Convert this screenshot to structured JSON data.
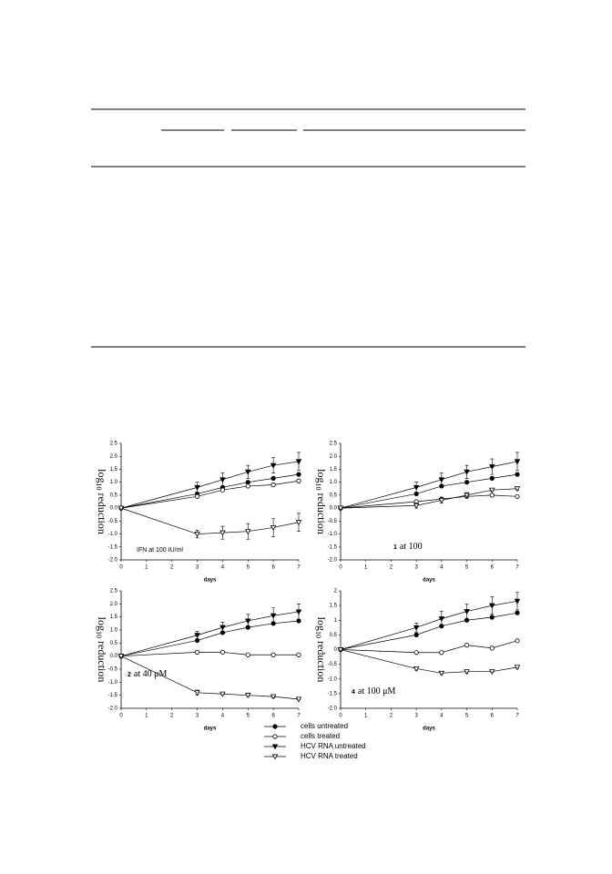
{
  "chart_data": [
    {
      "type": "line",
      "x_label": "days",
      "y_label": {
        "main": "log",
        "sub": "10",
        "rest": "reduction"
      },
      "annotation": "IFN at 100 IU/ml",
      "x": [
        0,
        3,
        4,
        5,
        6,
        7
      ],
      "xlim": [
        0,
        7
      ],
      "xticks": [
        0,
        1,
        2,
        3,
        4,
        5,
        6,
        7
      ],
      "ylim": [
        -2,
        2.5
      ],
      "yticks": [
        {
          "value": -2,
          "label": "-2.0"
        },
        -1.5,
        {
          "value": -1,
          "label": "-1.0"
        },
        -0.5,
        {
          "value": 0,
          "label": "0.0"
        },
        0.5,
        {
          "value": 1,
          "label": "1.0"
        },
        1.5,
        {
          "value": 2,
          "label": "2.0"
        },
        2.5
      ],
      "series": [
        {
          "name": "cells untreated",
          "marker": "circle-filled",
          "color": "#000000",
          "values": [
            0,
            0.55,
            0.8,
            1.0,
            1.15,
            1.3
          ]
        },
        {
          "name": "cells treated",
          "marker": "circle-open",
          "color": "#000000",
          "values": [
            0,
            0.45,
            0.7,
            0.85,
            0.9,
            1.05
          ]
        },
        {
          "name": "HCV RNA untreated",
          "marker": "triangle-filled",
          "color": "#000000",
          "values": [
            0,
            0.8,
            1.1,
            1.4,
            1.65,
            1.8
          ],
          "errors": [
            null,
            0.2,
            0.25,
            0.25,
            0.3,
            0.35
          ]
        },
        {
          "name": "HCV RNA treated",
          "marker": "triangle-open",
          "color": "#000000",
          "values": [
            0,
            -1.0,
            -0.95,
            -0.9,
            -0.75,
            -0.55
          ],
          "errors": [
            null,
            0.15,
            0.25,
            0.3,
            0.35,
            0.35
          ]
        }
      ]
    },
    {
      "type": "line",
      "x_label": "days",
      "y_label": {
        "main": "log",
        "sub": "10",
        "rest": "reduction"
      },
      "annotation_number": "1",
      "annotation": "at 100",
      "x": [
        0,
        3,
        4,
        5,
        6,
        7
      ],
      "xlim": [
        0,
        7
      ],
      "xticks": [
        0,
        1,
        2,
        3,
        4,
        5,
        6,
        7
      ],
      "ylim": [
        -2,
        2.5
      ],
      "yticks": [
        {
          "value": -2,
          "label": "-2.0"
        },
        -1.5,
        {
          "value": -1,
          "label": "-1.0"
        },
        -0.5,
        {
          "value": 0,
          "label": "0.0"
        },
        0.5,
        {
          "value": 1,
          "label": "1.0"
        },
        1.5,
        {
          "value": 2,
          "label": "2.0"
        },
        2.5
      ],
      "series": [
        {
          "marker": "circle-filled",
          "color": "#000000",
          "values": [
            0,
            0.55,
            0.85,
            1.0,
            1.15,
            1.3
          ]
        },
        {
          "marker": "circle-open",
          "color": "#000000",
          "values": [
            0,
            0.25,
            0.35,
            0.45,
            0.5,
            0.45
          ]
        },
        {
          "marker": "triangle-filled",
          "color": "#000000",
          "values": [
            0,
            0.8,
            1.1,
            1.4,
            1.6,
            1.8
          ],
          "errors": [
            null,
            0.2,
            0.25,
            0.25,
            0.3,
            0.35
          ]
        },
        {
          "marker": "triangle-open",
          "color": "#000000",
          "values": [
            0,
            0.1,
            0.3,
            0.5,
            0.7,
            0.75
          ],
          "errors": [
            null,
            0.1,
            0.1,
            0.1,
            0.05,
            0.05
          ]
        }
      ]
    },
    {
      "type": "line",
      "x_label": "days",
      "y_label": {
        "main": "log",
        "sub": "10",
        "rest": "reduction"
      },
      "annotation_number": "2",
      "annotation": "at 40 μM",
      "x": [
        0,
        3,
        4,
        5,
        6,
        7
      ],
      "xlim": [
        0,
        7
      ],
      "xticks": [
        0,
        1,
        2,
        3,
        4,
        5,
        6,
        7
      ],
      "ylim": [
        -2,
        2.5
      ],
      "yticks": [
        {
          "value": -2,
          "label": "-2.0"
        },
        -1.5,
        {
          "value": -1,
          "label": "-1.0"
        },
        -0.5,
        {
          "value": 0,
          "label": "0.0"
        },
        0.5,
        {
          "value": 1,
          "label": "1.0"
        },
        1.5,
        {
          "value": 2,
          "label": "2.0"
        },
        2.5
      ],
      "series": [
        {
          "marker": "circle-filled",
          "color": "#000000",
          "values": [
            0,
            0.6,
            0.9,
            1.1,
            1.25,
            1.35
          ]
        },
        {
          "marker": "circle-open",
          "color": "#000000",
          "values": [
            0,
            0.15,
            0.15,
            0.05,
            0.05,
            0.05
          ]
        },
        {
          "marker": "triangle-filled",
          "color": "#000000",
          "values": [
            0,
            0.8,
            1.1,
            1.35,
            1.55,
            1.7
          ],
          "errors": [
            null,
            0.15,
            0.2,
            0.25,
            0.3,
            0.3
          ]
        },
        {
          "marker": "triangle-open",
          "color": "#000000",
          "values": [
            0,
            -1.4,
            -1.45,
            -1.5,
            -1.55,
            -1.65
          ],
          "errors": [
            null,
            0.1,
            0.03,
            0.05,
            0.05,
            0.03
          ]
        }
      ]
    },
    {
      "type": "line",
      "x_label": "days",
      "y_label": {
        "main": "log",
        "sub": "10",
        "rest": "reduction"
      },
      "annotation_number": "4",
      "annotation": "at 100 μM",
      "x": [
        0,
        3,
        4,
        5,
        6,
        7
      ],
      "xlim": [
        0,
        7
      ],
      "xticks": [
        0,
        1,
        2,
        3,
        4,
        5,
        6,
        7
      ],
      "ylim": [
        -2,
        2
      ],
      "yticks": [
        {
          "value": -2,
          "label": "-2.0"
        },
        -1.5,
        {
          "value": -1,
          "label": "-1.0"
        },
        -0.5,
        0,
        0.5,
        1,
        1.5,
        2
      ],
      "series": [
        {
          "marker": "circle-filled",
          "color": "#000000",
          "values": [
            0,
            0.5,
            0.8,
            1.0,
            1.1,
            1.25
          ]
        },
        {
          "marker": "circle-open",
          "color": "#000000",
          "values": [
            0,
            -0.1,
            -0.1,
            0.15,
            0.05,
            0.3
          ]
        },
        {
          "marker": "triangle-filled",
          "color": "#000000",
          "values": [
            0,
            0.75,
            1.05,
            1.3,
            1.5,
            1.65
          ],
          "errors": [
            null,
            0.15,
            0.25,
            0.25,
            0.3,
            0.3
          ]
        },
        {
          "marker": "triangle-open",
          "color": "#000000",
          "values": [
            0,
            -0.65,
            -0.8,
            -0.75,
            -0.75,
            -0.6
          ],
          "errors": [
            null,
            0.05,
            0.05,
            0.05,
            0.03,
            0.03
          ]
        }
      ]
    }
  ]
}
